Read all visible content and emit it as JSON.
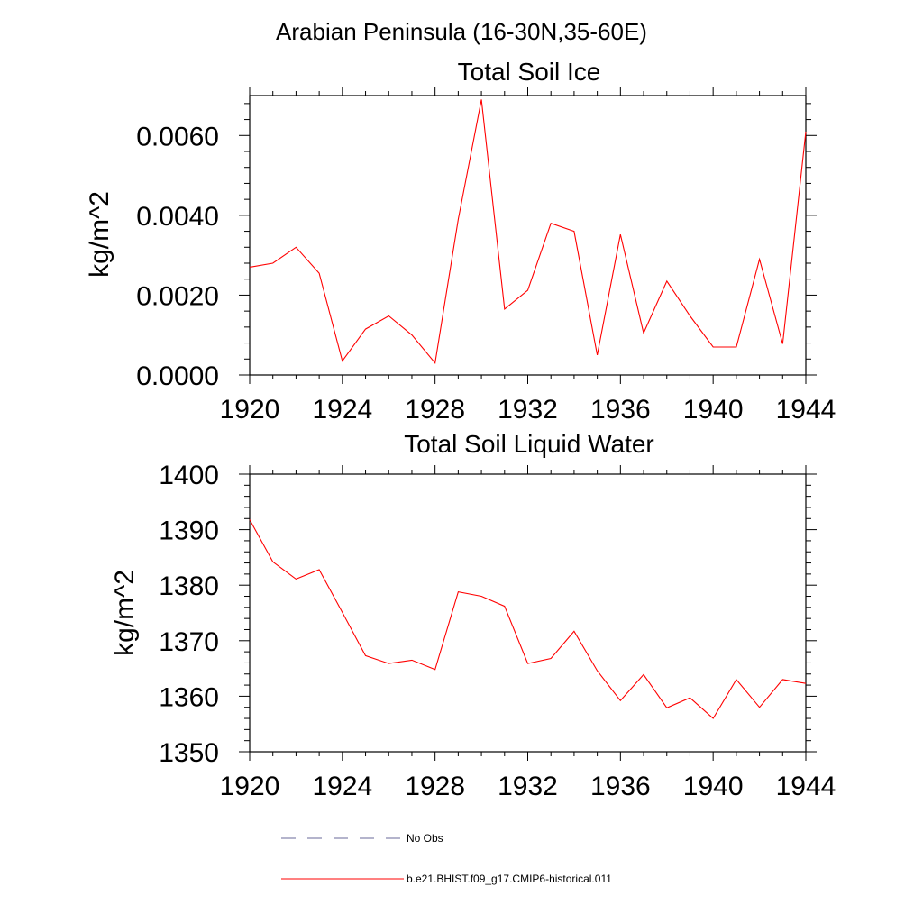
{
  "figure": {
    "suptitle": "Arabian Peninsula (16-30N,35-60E)"
  },
  "chart_data": [
    {
      "type": "line",
      "title": "Total Soil Ice",
      "xlabel": "",
      "ylabel": "kg/m^2",
      "xlim": [
        1920,
        1944
      ],
      "ylim": [
        0.0,
        0.007
      ],
      "x_ticks": [
        "1920",
        "1924",
        "1928",
        "1932",
        "1936",
        "1940",
        "1944"
      ],
      "y_ticks": [
        "0.0000",
        "0.0020",
        "0.0040",
        "0.0060"
      ],
      "grid": false,
      "series": [
        {
          "name": "b.e21.BHIST.f09_g17.CMIP6-historical.011",
          "color": "#ff0000",
          "x": [
            1920,
            1921,
            1922,
            1923,
            1924,
            1925,
            1926,
            1927,
            1928,
            1929,
            1930,
            1931,
            1932,
            1933,
            1934,
            1935,
            1936,
            1937,
            1938,
            1939,
            1940,
            1941,
            1942,
            1943,
            1944
          ],
          "y": [
            0.0027,
            0.0028,
            0.0032,
            0.00255,
            0.00035,
            0.00115,
            0.00148,
            0.001,
            0.0003,
            0.0039,
            0.0069,
            0.00165,
            0.00212,
            0.0038,
            0.0036,
            0.0005,
            0.00352,
            0.00105,
            0.00235,
            0.00148,
            0.0007,
            0.0007,
            0.0029,
            0.00078,
            0.0061
          ]
        }
      ]
    },
    {
      "type": "line",
      "title": "Total Soil Liquid Water",
      "xlabel": "",
      "ylabel": "kg/m^2",
      "xlim": [
        1920,
        1944
      ],
      "ylim": [
        1350,
        1400
      ],
      "x_ticks": [
        "1920",
        "1924",
        "1928",
        "1932",
        "1936",
        "1940",
        "1944"
      ],
      "y_ticks": [
        "1350",
        "1360",
        "1370",
        "1380",
        "1390",
        "1400"
      ],
      "grid": false,
      "series": [
        {
          "name": "b.e21.BHIST.f09_g17.CMIP6-historical.011",
          "color": "#ff0000",
          "x": [
            1920,
            1921,
            1922,
            1923,
            1924,
            1925,
            1926,
            1927,
            1928,
            1929,
            1930,
            1931,
            1932,
            1933,
            1934,
            1935,
            1936,
            1937,
            1938,
            1939,
            1940,
            1941,
            1942,
            1943,
            1944
          ],
          "y": [
            1391.8,
            1384.2,
            1381.1,
            1382.8,
            1375.1,
            1367.3,
            1365.9,
            1366.5,
            1364.8,
            1378.8,
            1378.0,
            1376.2,
            1365.9,
            1366.8,
            1371.7,
            1364.6,
            1359.2,
            1363.9,
            1357.9,
            1359.7,
            1356.0,
            1363.0,
            1358.0,
            1363.0,
            1362.3
          ]
        }
      ]
    }
  ],
  "legend": {
    "items": [
      {
        "label": "No Obs",
        "style": "dashed",
        "color": "#6a6a9a"
      },
      {
        "label": "b.e21.BHIST.f09_g17.CMIP6-historical.011",
        "style": "solid",
        "color": "#ff0000"
      }
    ]
  }
}
